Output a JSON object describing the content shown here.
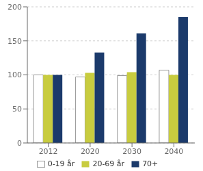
{
  "chart_data": {
    "type": "bar",
    "categories": [
      "2012",
      "2020",
      "2030",
      "2040"
    ],
    "series": [
      {
        "name": "0-19 år",
        "color": "#ffffff",
        "values": [
          100,
          97,
          99,
          107
        ]
      },
      {
        "name": "20-69 år",
        "color": "#c8cc3f",
        "values": [
          100,
          103,
          104,
          100
        ]
      },
      {
        "name": "70+",
        "color": "#1b3a6b",
        "values": [
          100,
          133,
          161,
          185
        ]
      }
    ],
    "ylim": [
      0,
      200
    ],
    "yticks": [
      0,
      50,
      100,
      150,
      200
    ],
    "grid": true,
    "legend": "bottom"
  }
}
